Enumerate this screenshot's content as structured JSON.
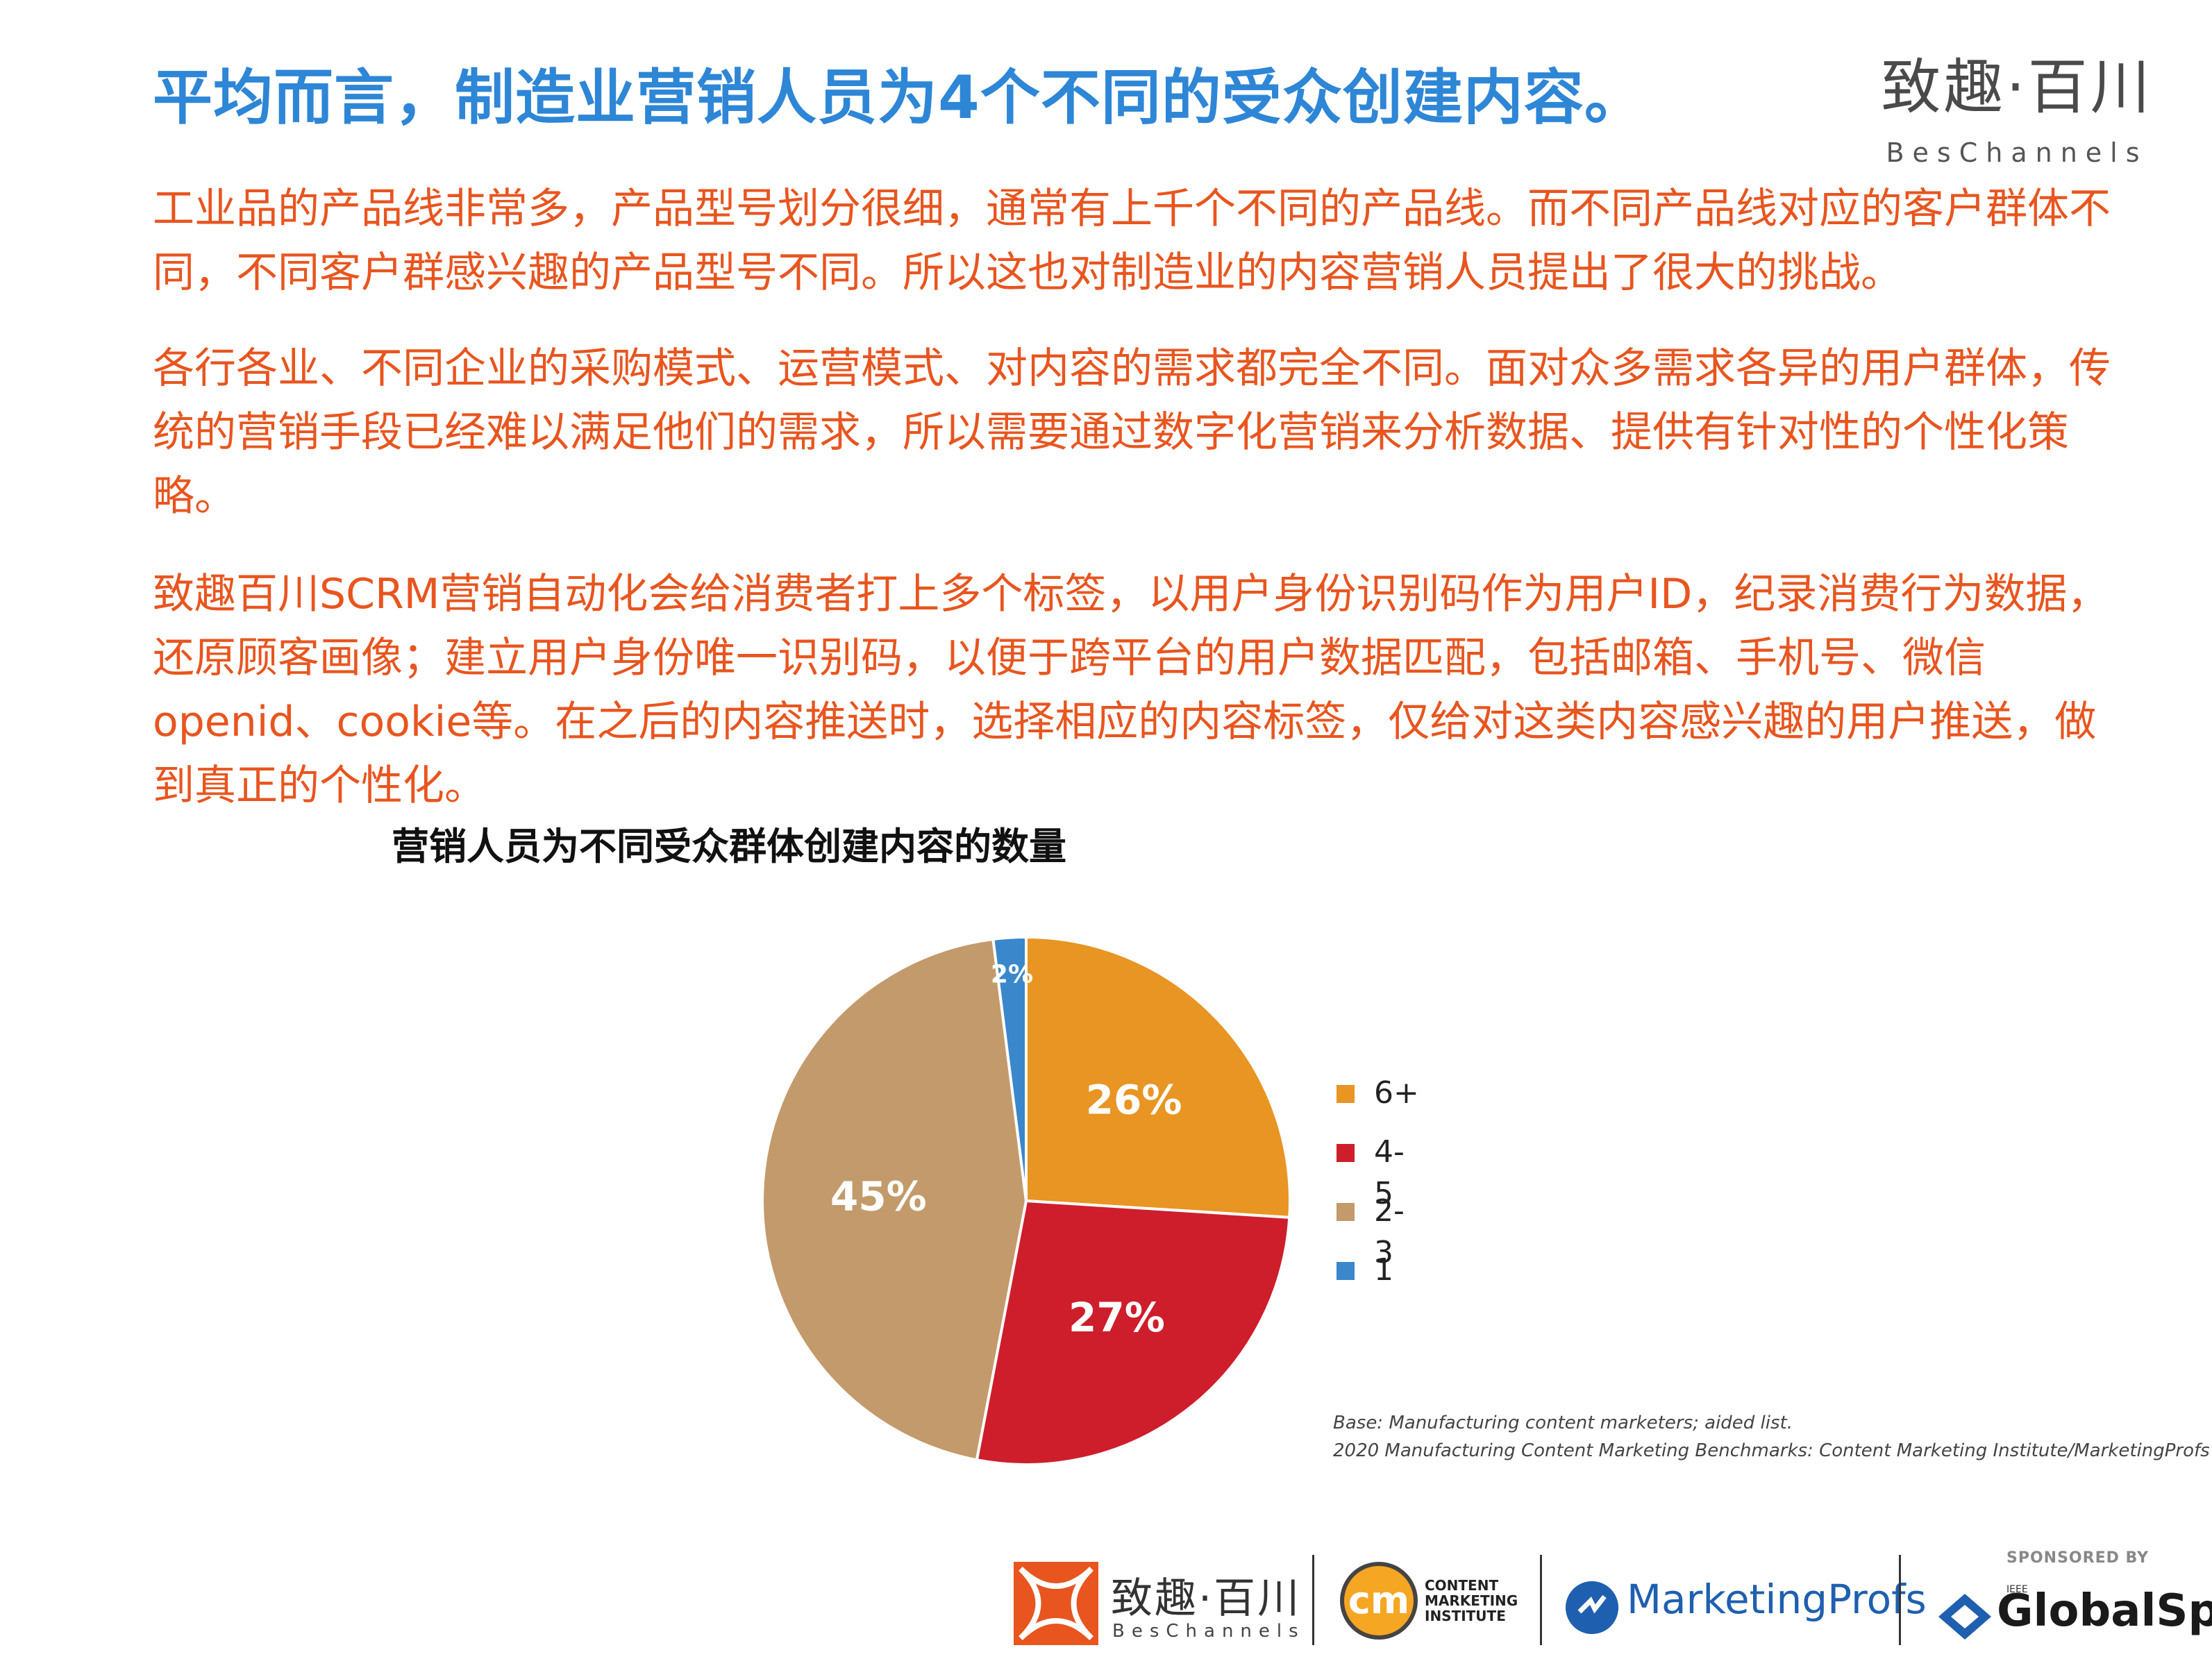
{
  "header": {
    "title": "平均而言，制造业营销人员为4个不同的受众创建内容。",
    "brand_cn": "致趣·百川",
    "brand_en": "BesChannels"
  },
  "body": {
    "paragraphs": [
      "工业品的产品线非常多，产品型号划分很细，通常有上千个不同的产品线。而不同产品线对应的客户群体不同，不同客户群感兴趣的产品型号不同。所以这也对制造业的内容营销人员提出了很大的挑战。",
      "各行各业、不同企业的采购模式、运营模式、对内容的需求都完全不同。面对众多需求各异的用户群体，传统的营销手段已经难以满足他们的需求，所以需要通过数字化营销来分析数据、提供有针对性的个性化策略。",
      "致趣百川SCRM营销自动化会给消费者打上多个标签，以用户身份识别码作为用户ID，纪录消费行为数据，还原顾客画像；建立用户身份唯一识别码，以便于跨平台的用户数据匹配，包括邮箱、手机号、微信openid、cookie等。在之后的内容推送时，选择相应的内容标签，仅给对这类内容感兴趣的用户推送，做到真正的个性化。"
    ]
  },
  "chart_data": {
    "type": "pie",
    "title": "营销人员为不同受众群体创建内容的数量",
    "categories": [
      "6+",
      "4-5",
      "2-3",
      "1"
    ],
    "values": [
      26,
      27,
      45,
      2
    ],
    "labels": [
      "26%",
      "27%",
      "45%",
      "2%"
    ],
    "colors": [
      "#E89523",
      "#CE1E2B",
      "#C39A6B",
      "#3A87CB"
    ],
    "legend_position": "right",
    "start": "12 o'clock, clockwise"
  },
  "source": {
    "line1": "Base: Manufacturing content marketers; aided list.",
    "line2": "2020 Manufacturing Content Marketing Benchmarks: Content Marketing Institute/MarketingProfs"
  },
  "footer": {
    "bes_cn": "致趣·百川",
    "bes_en": "BesChannels",
    "cmi_mark": "cm",
    "cmi_text": "CONTENT MARKETING INSTITUTE",
    "mp_name": "MarketingProfs",
    "gs_sponsored": "SPONSORED BY",
    "gs_ieee": "IEEE",
    "gs_name": "GlobalSpec"
  }
}
